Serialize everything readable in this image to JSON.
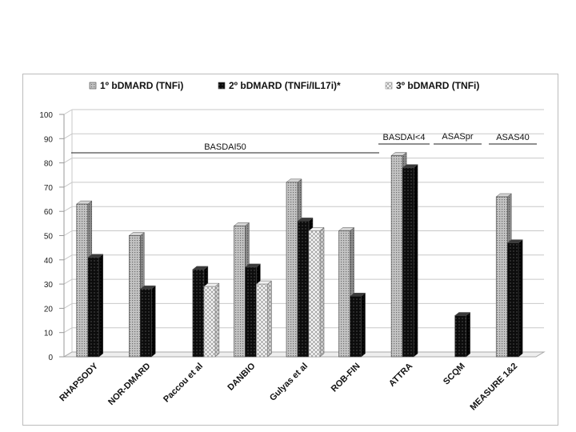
{
  "chart_data": {
    "type": "bar",
    "categories": [
      "RHAPSODY",
      "NOR-DMARD",
      "Paccou et al",
      "DANBIO",
      "Gulyas et al",
      "ROB-FIN",
      "ATTRA",
      "SCQM",
      "MEASURE 1&2"
    ],
    "series": [
      {
        "name": "1º bDMARD (TNFi)",
        "values": [
          63,
          50,
          null,
          54,
          72,
          52,
          83,
          null,
          66
        ],
        "color": "#a6a6a6",
        "pattern": "dotted-gray"
      },
      {
        "name": "2º bDMARD (TNFi/IL17i)*",
        "values": [
          41,
          28,
          36,
          37,
          56,
          25,
          78,
          17,
          47
        ],
        "color": "#111111",
        "pattern": "dotted-black"
      },
      {
        "name": "3º bDMARD (TNFi)",
        "values": [
          null,
          null,
          29,
          30,
          52,
          null,
          null,
          null,
          null
        ],
        "color": "#ffffff",
        "pattern": "checker-white"
      }
    ],
    "yticks": [
      "0",
      "10",
      "20",
      "30",
      "40",
      "50",
      "60",
      "70",
      "80",
      "90",
      "100"
    ],
    "ylim": [
      0,
      100
    ],
    "grid": true,
    "legend": "top",
    "annotations": [
      {
        "text": "BASDAI50",
        "from_category": 0,
        "to_category": 5
      },
      {
        "text": "BASDAI<4",
        "from_category": 6,
        "to_category": 6
      },
      {
        "text": "ASASpr",
        "from_category": 7,
        "to_category": 7
      },
      {
        "text": "ASAS40",
        "from_category": 8,
        "to_category": 8
      }
    ]
  }
}
